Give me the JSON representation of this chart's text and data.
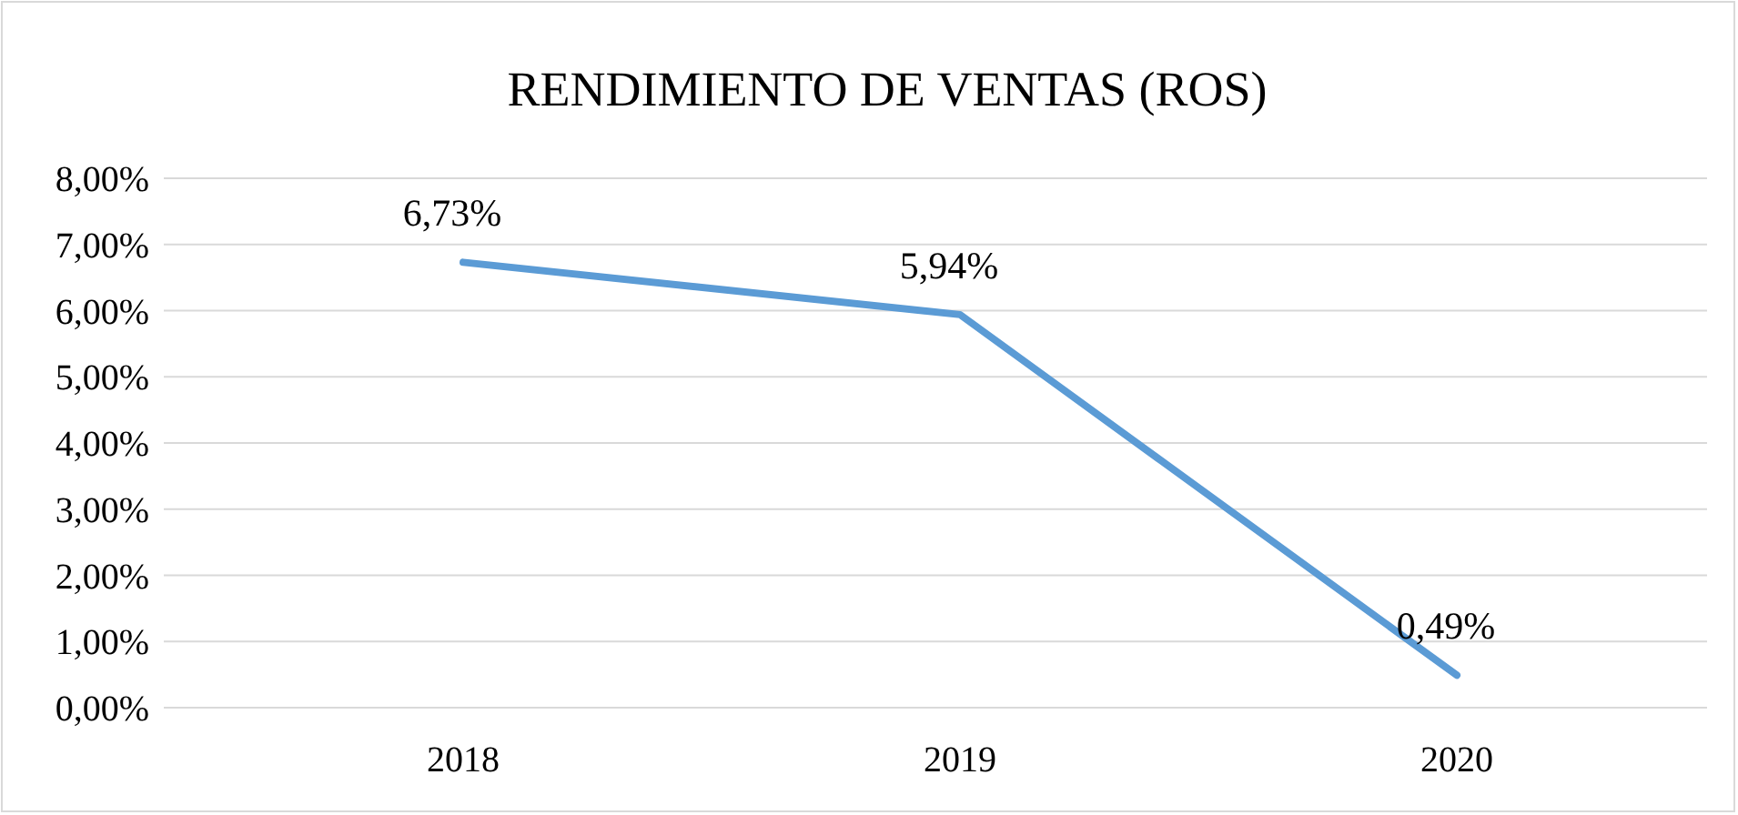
{
  "chart_data": {
    "type": "line",
    "title": "RENDIMIENTO DE VENTAS (ROS)",
    "categories": [
      "2018",
      "2019",
      "2020"
    ],
    "series": [
      {
        "color": "#5b9bd5",
        "values": [
          6.73,
          5.94,
          0.49
        ],
        "value_labels": [
          "6,73%",
          "5,94%",
          "0,49%"
        ]
      }
    ],
    "ylim": [
      0,
      8
    ],
    "yticks": [
      {
        "value": 0,
        "label": "0,00%"
      },
      {
        "value": 1,
        "label": "1,00%"
      },
      {
        "value": 2,
        "label": "2,00%"
      },
      {
        "value": 3,
        "label": "3,00%"
      },
      {
        "value": 4,
        "label": "4,00%"
      },
      {
        "value": 5,
        "label": "5,00%"
      },
      {
        "value": 6,
        "label": "6,00%"
      },
      {
        "value": 7,
        "label": "7,00%"
      },
      {
        "value": 8,
        "label": "8,00%"
      }
    ],
    "grid": "y",
    "marker": "none",
    "line_style": "solid"
  }
}
